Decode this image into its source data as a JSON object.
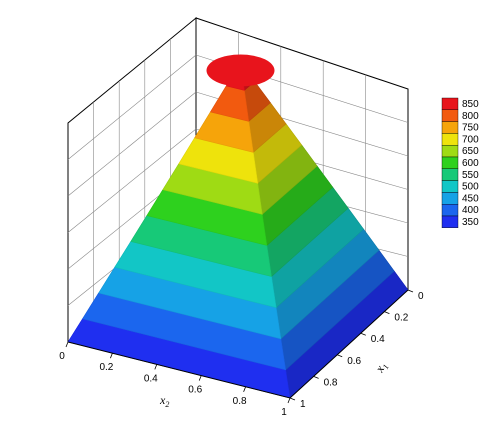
{
  "chart_data": {
    "type": "surface3d",
    "title": "",
    "axes": {
      "x2": {
        "label": "x",
        "sub": "2",
        "ticks": [
          "0",
          "0.2",
          "0.4",
          "0.6",
          "0.8",
          "1"
        ],
        "range": [
          0,
          1
        ]
      },
      "x1": {
        "label": "x",
        "sub": "1",
        "ticks": [
          "0",
          "0.2",
          "0.4",
          "0.6",
          "0.8",
          "1"
        ],
        "range": [
          0,
          1
        ]
      }
    },
    "z_range": [
      330,
      870
    ],
    "peak": {
      "x1": 0.5,
      "x2": 0.5,
      "value": 870
    },
    "base_value": 330,
    "contour_levels": [
      350,
      400,
      450,
      500,
      550,
      600,
      650,
      700,
      750,
      800,
      850
    ],
    "legend": {
      "position": "right",
      "entries": [
        {
          "label": "850",
          "color": "#e8141c"
        },
        {
          "label": "800",
          "color": "#f25a0f"
        },
        {
          "label": "750",
          "color": "#f6a40a"
        },
        {
          "label": "700",
          "color": "#eee30c"
        },
        {
          "label": "650",
          "color": "#9fdb14"
        },
        {
          "label": "600",
          "color": "#2ed11e"
        },
        {
          "label": "550",
          "color": "#17c978"
        },
        {
          "label": "500",
          "color": "#12c6c6"
        },
        {
          "label": "450",
          "color": "#16a2e6"
        },
        {
          "label": "400",
          "color": "#1b66ee"
        },
        {
          "label": "350",
          "color": "#1f2ff0"
        }
      ]
    }
  }
}
